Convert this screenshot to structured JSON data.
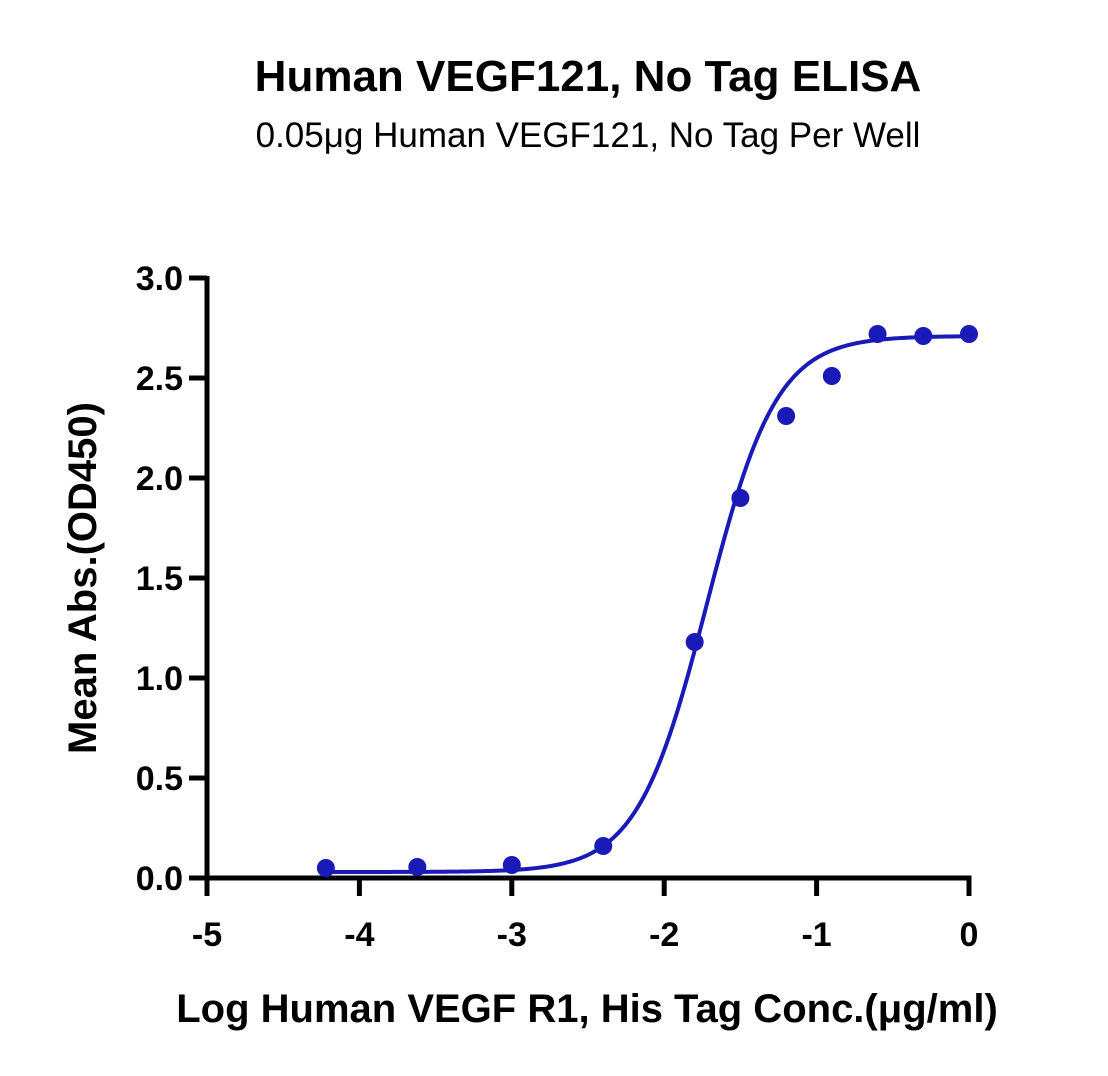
{
  "chart_data": {
    "type": "scatter",
    "title": "Human VEGF121, No Tag ELISA",
    "subtitle": "0.05μg Human VEGF121, No Tag Per Well",
    "xlabel": "Log Human VEGF R1, His Tag Conc.(μg/ml)",
    "ylabel": "Mean Abs.(OD450)",
    "xlim": [
      -5,
      0
    ],
    "ylim": [
      0,
      3.0
    ],
    "x_ticks": [
      -5,
      -4,
      -3,
      -2,
      -1,
      0
    ],
    "x_tick_labels": [
      "-5",
      "-4",
      "-3",
      "-2",
      "-1",
      "0"
    ],
    "y_ticks": [
      0,
      0.5,
      1.0,
      1.5,
      2.0,
      2.5,
      3.0
    ],
    "y_tick_labels": [
      "0.0",
      "0.5",
      "1.0",
      "1.5",
      "2.0",
      "2.5",
      "3.0"
    ],
    "grid": false,
    "color": "#1a1ab8",
    "series": [
      {
        "points": [
          {
            "x": -4.22,
            "y": 0.05
          },
          {
            "x": -3.62,
            "y": 0.055
          },
          {
            "x": -3.0,
            "y": 0.065
          },
          {
            "x": -2.4,
            "y": 0.16
          },
          {
            "x": -1.8,
            "y": 1.18
          },
          {
            "x": -1.5,
            "y": 1.9
          },
          {
            "x": -1.2,
            "y": 2.31
          },
          {
            "x": -0.9,
            "y": 2.51
          },
          {
            "x": -0.6,
            "y": 2.72
          },
          {
            "x": -0.3,
            "y": 2.71
          },
          {
            "x": 0.0,
            "y": 2.72
          }
        ]
      }
    ],
    "fit_curve": {
      "model": "4PL",
      "bottom": 0.03,
      "top": 2.71,
      "logEC50": -1.72,
      "hill": 1.9,
      "x_range": [
        -4.22,
        0.0
      ]
    }
  }
}
